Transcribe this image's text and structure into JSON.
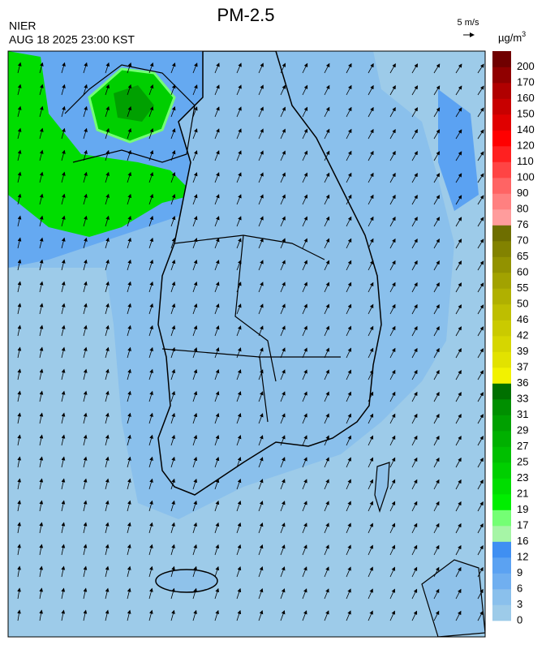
{
  "header": {
    "title": "PM-2.5",
    "agency": "NIER",
    "timestamp": "AUG 18 2025 23:00 KST",
    "wind_scale": "5 m/s"
  },
  "colorbar": {
    "unit": {
      "base": "µg/m",
      "sup": "3"
    },
    "ticks": [
      0,
      3,
      6,
      9,
      12,
      16,
      17,
      19,
      21,
      23,
      25,
      27,
      29,
      31,
      33,
      36,
      37,
      39,
      42,
      46,
      50,
      55,
      60,
      65,
      70,
      76,
      80,
      90,
      100,
      110,
      120,
      140,
      150,
      160,
      170,
      200
    ],
    "colors": [
      "#9dcbe9",
      "#8ac0ec",
      "#70aff0",
      "#5ba2f2",
      "#3f8ff2",
      "#a6f5a6",
      "#74ff74",
      "#00ee00",
      "#00dd00",
      "#00cf00",
      "#00bf00",
      "#00b000",
      "#00a000",
      "#008f00",
      "#007000",
      "#f2f200",
      "#e2e200",
      "#d6d600",
      "#caca00",
      "#bebe00",
      "#b0b000",
      "#a2a200",
      "#929200",
      "#828200",
      "#6e6e00",
      "#ff9c9c",
      "#ff8080",
      "#ff6464",
      "#ff4444",
      "#ff2020",
      "#ff0000",
      "#e00000",
      "#c80000",
      "#b00000",
      "#900000",
      "#700000"
    ]
  }
}
